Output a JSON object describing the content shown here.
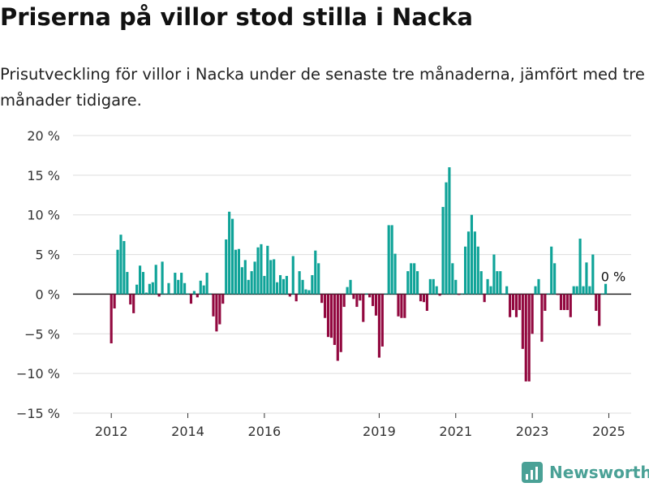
{
  "header": {
    "title": "Priserna på villor stod stilla i Nacka",
    "subtitle": "Prisutveckling för villor i Nacka under de senaste tre månaderna, jämfört med tre månader tidigare."
  },
  "brand": {
    "name": "Newsworthy",
    "icon": "newsworthy-logo-icon",
    "color": "#4aa196"
  },
  "chart_data": {
    "type": "bar",
    "x_ticks": [
      "2012",
      "2014",
      "2016",
      "2019",
      "2021",
      "2023",
      "2025"
    ],
    "y_ticks": [
      "20 %",
      "15 %",
      "10 %",
      "5 %",
      "0 %",
      "−5 %",
      "−10 %",
      "−15 %"
    ],
    "ylim": [
      -15,
      20
    ],
    "grid": true,
    "colors": {
      "positive": "#0fa398",
      "negative": "#92083f",
      "grid": "#dddddd",
      "zero_line": "#222222"
    },
    "annotation": {
      "text": "0 %",
      "x": "2024-09",
      "y": 0
    },
    "series": [
      {
        "values": [
          [
            "2012-01",
            -6.2
          ],
          [
            "2012-02",
            -1.8
          ],
          [
            "2012-03",
            5.6
          ],
          [
            "2012-04",
            7.5
          ],
          [
            "2012-05",
            6.7
          ],
          [
            "2012-06",
            2.8
          ],
          [
            "2012-07",
            -1.3
          ],
          [
            "2012-08",
            -2.4
          ],
          [
            "2012-09",
            1.2
          ],
          [
            "2012-10",
            3.6
          ],
          [
            "2012-11",
            2.8
          ],
          [
            "2012-12",
            0.2
          ],
          [
            "2013-01",
            1.3
          ],
          [
            "2013-02",
            1.5
          ],
          [
            "2013-03",
            3.7
          ],
          [
            "2013-04",
            -0.3
          ],
          [
            "2013-05",
            4.1
          ],
          [
            "2013-06",
            0.1
          ],
          [
            "2013-07",
            1.4
          ],
          [
            "2013-08",
            0.1
          ],
          [
            "2013-09",
            2.7
          ],
          [
            "2013-10",
            1.8
          ],
          [
            "2013-11",
            2.7
          ],
          [
            "2013-12",
            1.4
          ],
          [
            "2014-01",
            0.1
          ],
          [
            "2014-02",
            -1.2
          ],
          [
            "2014-03",
            0.4
          ],
          [
            "2014-04",
            -0.4
          ],
          [
            "2014-05",
            1.7
          ],
          [
            "2014-06",
            1.1
          ],
          [
            "2014-07",
            2.7
          ],
          [
            "2014-08",
            0.1
          ],
          [
            "2014-09",
            -2.8
          ],
          [
            "2014-10",
            -4.7
          ],
          [
            "2014-11",
            -3.8
          ],
          [
            "2014-12",
            -1.2
          ],
          [
            "2015-01",
            6.9
          ],
          [
            "2015-02",
            10.4
          ],
          [
            "2015-03",
            9.5
          ],
          [
            "2015-04",
            5.6
          ],
          [
            "2015-05",
            5.7
          ],
          [
            "2015-06",
            3.4
          ],
          [
            "2015-07",
            4.3
          ],
          [
            "2015-08",
            1.8
          ],
          [
            "2015-09",
            2.9
          ],
          [
            "2015-10",
            4.1
          ],
          [
            "2015-11",
            5.9
          ],
          [
            "2015-12",
            6.3
          ],
          [
            "2016-01",
            2.3
          ],
          [
            "2016-02",
            6.1
          ],
          [
            "2016-03",
            4.3
          ],
          [
            "2016-04",
            4.4
          ],
          [
            "2016-05",
            1.5
          ],
          [
            "2016-06",
            2.4
          ],
          [
            "2016-07",
            1.9
          ],
          [
            "2016-08",
            2.3
          ],
          [
            "2016-09",
            -0.3
          ],
          [
            "2016-10",
            4.8
          ],
          [
            "2016-11",
            -0.9
          ],
          [
            "2016-12",
            2.9
          ],
          [
            "2017-01",
            1.8
          ],
          [
            "2017-02",
            0.6
          ],
          [
            "2017-03",
            0.5
          ],
          [
            "2017-04",
            2.4
          ],
          [
            "2017-05",
            5.5
          ],
          [
            "2017-06",
            3.9
          ],
          [
            "2017-07",
            -1.1
          ],
          [
            "2017-08",
            -3.0
          ],
          [
            "2017-09",
            -5.4
          ],
          [
            "2017-10",
            -5.5
          ],
          [
            "2017-11",
            -6.4
          ],
          [
            "2017-12",
            -8.4
          ],
          [
            "2018-01",
            -7.3
          ],
          [
            "2018-02",
            -1.6
          ],
          [
            "2018-03",
            0.9
          ],
          [
            "2018-04",
            1.8
          ],
          [
            "2018-05",
            -0.6
          ],
          [
            "2018-06",
            -1.6
          ],
          [
            "2018-07",
            -0.8
          ],
          [
            "2018-08",
            -3.5
          ],
          [
            "2018-09",
            0.1
          ],
          [
            "2018-10",
            -0.4
          ],
          [
            "2018-11",
            -1.5
          ],
          [
            "2018-12",
            -2.7
          ],
          [
            "2019-01",
            -8.0
          ],
          [
            "2019-02",
            -6.6
          ],
          [
            "2019-03",
            0.1
          ],
          [
            "2019-04",
            8.7
          ],
          [
            "2019-05",
            8.7
          ],
          [
            "2019-06",
            5.1
          ],
          [
            "2019-07",
            -2.8
          ],
          [
            "2019-08",
            -3.0
          ],
          [
            "2019-09",
            -3.0
          ],
          [
            "2019-10",
            2.9
          ],
          [
            "2019-11",
            3.9
          ],
          [
            "2019-12",
            3.9
          ],
          [
            "2020-01",
            2.9
          ],
          [
            "2020-02",
            -0.9
          ],
          [
            "2020-03",
            -1.0
          ],
          [
            "2020-04",
            -2.1
          ],
          [
            "2020-05",
            1.9
          ],
          [
            "2020-06",
            1.9
          ],
          [
            "2020-07",
            1.0
          ],
          [
            "2020-08",
            -0.2
          ],
          [
            "2020-09",
            11.0
          ],
          [
            "2020-10",
            14.1
          ],
          [
            "2020-11",
            16.0
          ],
          [
            "2020-12",
            3.9
          ],
          [
            "2021-01",
            1.8
          ],
          [
            "2021-02",
            -0.1
          ],
          [
            "2021-03",
            0.1
          ],
          [
            "2021-04",
            6.0
          ],
          [
            "2021-05",
            7.9
          ],
          [
            "2021-06",
            10.0
          ],
          [
            "2021-07",
            7.9
          ],
          [
            "2021-08",
            6.0
          ],
          [
            "2021-09",
            2.9
          ],
          [
            "2021-10",
            -1.0
          ],
          [
            "2021-11",
            1.9
          ],
          [
            "2021-12",
            1.0
          ],
          [
            "2022-01",
            5.0
          ],
          [
            "2022-02",
            2.9
          ],
          [
            "2022-03",
            2.9
          ],
          [
            "2022-04",
            0.1
          ],
          [
            "2022-05",
            1.0
          ],
          [
            "2022-06",
            -2.9
          ],
          [
            "2022-07",
            -2.0
          ],
          [
            "2022-08",
            -2.9
          ],
          [
            "2022-09",
            -2.0
          ],
          [
            "2022-10",
            -6.9
          ],
          [
            "2022-11",
            -11.0
          ],
          [
            "2022-12",
            -11.0
          ],
          [
            "2023-01",
            -5.0
          ],
          [
            "2023-02",
            1.0
          ],
          [
            "2023-03",
            1.9
          ],
          [
            "2023-04",
            -6.0
          ],
          [
            "2023-05",
            -2.1
          ],
          [
            "2023-06",
            0.1
          ],
          [
            "2023-07",
            6.0
          ],
          [
            "2023-08",
            3.9
          ],
          [
            "2023-09",
            -0.1
          ],
          [
            "2023-10",
            -2.0
          ],
          [
            "2023-11",
            -2.0
          ],
          [
            "2023-12",
            -2.0
          ],
          [
            "2024-01",
            -2.9
          ],
          [
            "2024-02",
            1.0
          ],
          [
            "2024-03",
            1.0
          ],
          [
            "2024-04",
            7.0
          ],
          [
            "2024-05",
            1.0
          ],
          [
            "2024-06",
            4.0
          ],
          [
            "2024-07",
            1.0
          ],
          [
            "2024-08",
            5.0
          ],
          [
            "2024-09",
            -2.1
          ],
          [
            "2024-10",
            -4.0
          ],
          [
            "2024-11",
            0.1
          ],
          [
            "2024-12",
            1.3
          ]
        ]
      }
    ]
  }
}
